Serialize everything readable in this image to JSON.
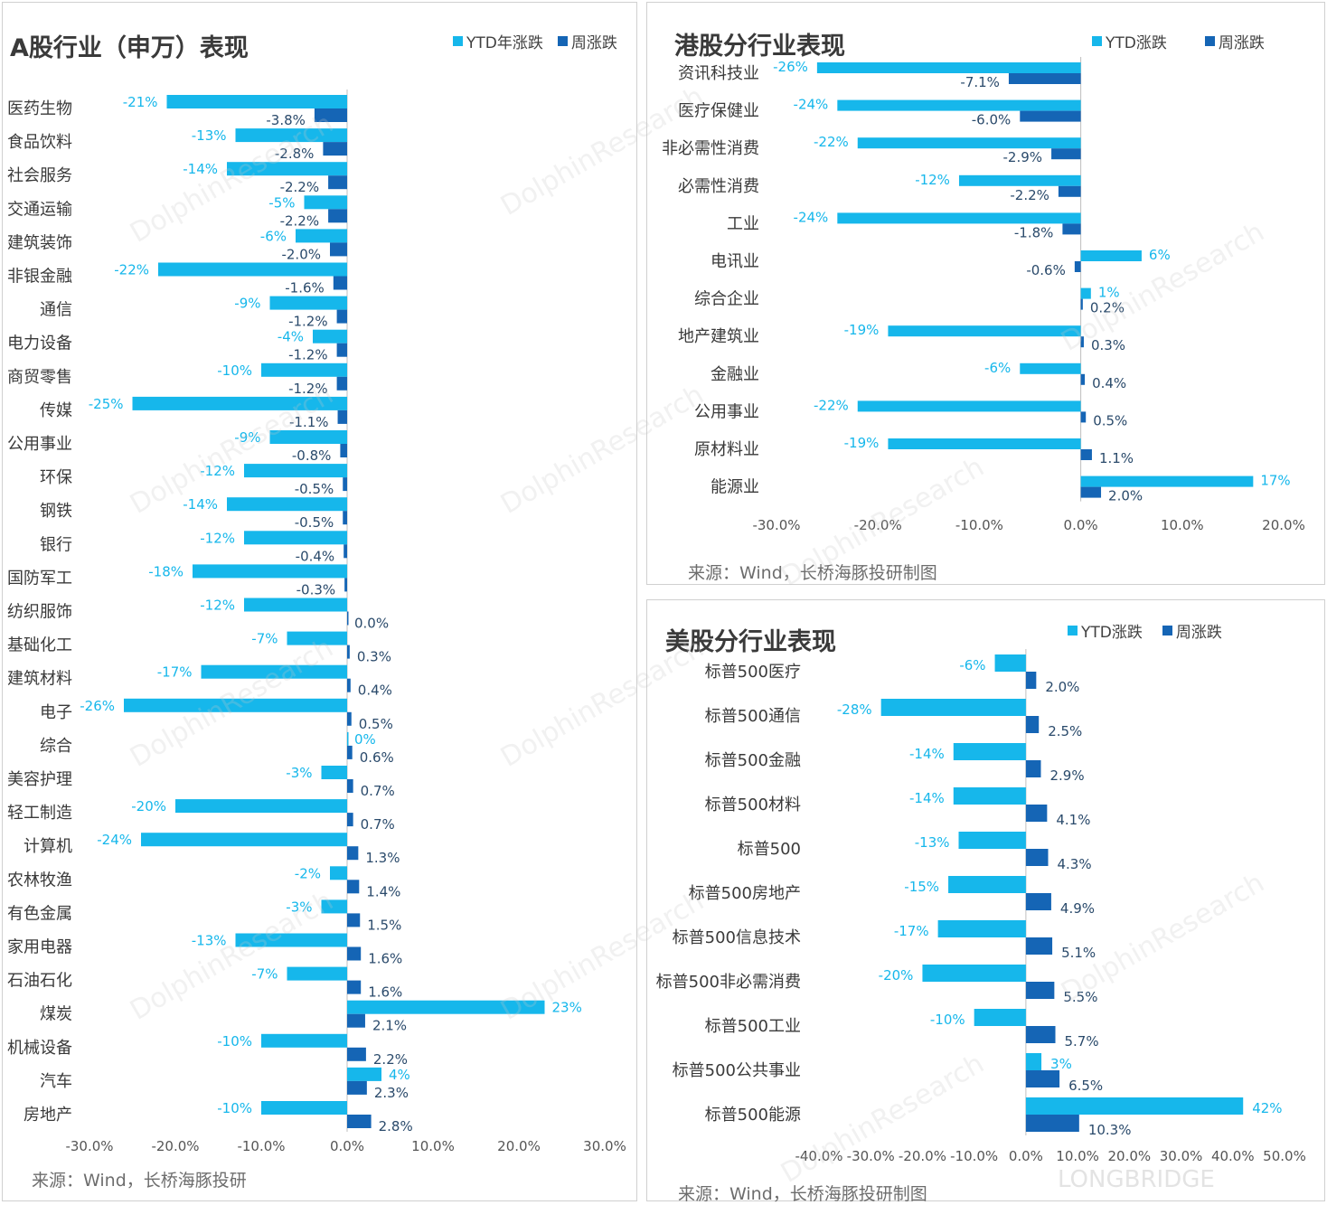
{
  "colors": {
    "ytd": "#16b7eb",
    "week": "#1565b5"
  },
  "watermark": {
    "text": "DolphinResearch",
    "sub": "LONGBRIDGE"
  },
  "panels": {
    "a": {
      "title": "A股行业（申万）表现",
      "legend": [
        "YTD年涨跌",
        "周涨跌"
      ],
      "source": "来源：Wind，长桥海豚投研"
    },
    "hk": {
      "title": "港股分行业表现",
      "legend": [
        "YTD涨跌",
        "周涨跌"
      ],
      "source": "来源：Wind，长桥海豚投研制图"
    },
    "us": {
      "title": "美股分行业表现",
      "legend": [
        "YTD涨跌",
        "周涨跌"
      ],
      "source": "来源：Wind，长桥海豚投研制图"
    }
  },
  "chart_data": [
    {
      "id": "a",
      "type": "bar",
      "orientation": "horizontal",
      "title": "A股行业（申万）表现",
      "categories": [
        "医药生物",
        "食品饮料",
        "社会服务",
        "交通运输",
        "建筑装饰",
        "非银金融",
        "通信",
        "电力设备",
        "商贸零售",
        "传媒",
        "公用事业",
        "环保",
        "钢铁",
        "银行",
        "国防军工",
        "纺织服饰",
        "基础化工",
        "建筑材料",
        "电子",
        "综合",
        "美容护理",
        "轻工制造",
        "计算机",
        "农林牧渔",
        "有色金属",
        "家用电器",
        "石油石化",
        "煤炭",
        "机械设备",
        "汽车",
        "房地产"
      ],
      "series": [
        {
          "name": "YTD年涨跌",
          "values": [
            -21,
            -13,
            -14,
            -5,
            -6,
            -22,
            -9,
            -4,
            -10,
            -25,
            -9,
            -12,
            -14,
            -12,
            -18,
            -12,
            -7,
            -17,
            -26,
            0,
            -3,
            -20,
            -24,
            -2,
            -3,
            -13,
            -7,
            23,
            -10,
            4,
            -10
          ],
          "labels": [
            "-21%",
            "-13%",
            "-14%",
            "-5%",
            "-6%",
            "-22%",
            "-9%",
            "-4%",
            "-10%",
            "-25%",
            "-9%",
            "-12%",
            "-14%",
            "-12%",
            "-18%",
            "-12%",
            "-7%",
            "-17%",
            "-26%",
            "0%",
            "-3%",
            "-20%",
            "-24%",
            "-2%",
            "-3%",
            "-13%",
            "-7%",
            "23%",
            "-10%",
            "4%",
            "-10%"
          ]
        },
        {
          "name": "周涨跌",
          "values": [
            -3.8,
            -2.8,
            -2.2,
            -2.2,
            -2.0,
            -1.6,
            -1.2,
            -1.2,
            -1.2,
            -1.1,
            -0.8,
            -0.5,
            -0.5,
            -0.4,
            -0.3,
            0.0,
            0.3,
            0.4,
            0.5,
            0.6,
            0.7,
            0.7,
            1.3,
            1.4,
            1.5,
            1.6,
            1.6,
            2.1,
            2.2,
            2.3,
            2.8
          ],
          "labels": [
            "-3.8%",
            "-2.8%",
            "-2.2%",
            "-2.2%",
            "-2.0%",
            "-1.6%",
            "-1.2%",
            "-1.2%",
            "-1.2%",
            "-1.1%",
            "-0.8%",
            "-0.5%",
            "-0.5%",
            "-0.4%",
            "-0.3%",
            "0.0%",
            "0.3%",
            "0.4%",
            "0.5%",
            "0.6%",
            "0.7%",
            "0.7%",
            "1.3%",
            "1.4%",
            "1.5%",
            "1.6%",
            "1.6%",
            "2.1%",
            "2.2%",
            "2.3%",
            "2.8%"
          ]
        }
      ],
      "xlim": [
        -30,
        30
      ],
      "xticks": [
        "-30.0%",
        "-20.0%",
        "-10.0%",
        "0.0%",
        "10.0%",
        "20.0%",
        "30.0%"
      ],
      "legend_position": "top-right"
    },
    {
      "id": "hk",
      "type": "bar",
      "orientation": "horizontal",
      "title": "港股分行业表现",
      "categories": [
        "资讯科技业",
        "医疗保健业",
        "非必需性消费",
        "必需性消费",
        "工业",
        "电讯业",
        "综合企业",
        "地产建筑业",
        "金融业",
        "公用事业",
        "原材料业",
        "能源业"
      ],
      "series": [
        {
          "name": "YTD涨跌",
          "values": [
            -26,
            -24,
            -22,
            -12,
            -24,
            6,
            1,
            -19,
            -6,
            -22,
            -19,
            17
          ],
          "labels": [
            "-26%",
            "-24%",
            "-22%",
            "-12%",
            "-24%",
            "6%",
            "1%",
            "-19%",
            "-6%",
            "-22%",
            "-19%",
            "17%"
          ]
        },
        {
          "name": "周涨跌",
          "values": [
            -7.1,
            -6.0,
            -2.9,
            -2.2,
            -1.8,
            -0.6,
            0.2,
            0.3,
            0.4,
            0.5,
            1.1,
            2.0
          ],
          "labels": [
            "-7.1%",
            "-6.0%",
            "-2.9%",
            "-2.2%",
            "-1.8%",
            "-0.6%",
            "0.2%",
            "0.3%",
            "0.4%",
            "0.5%",
            "1.1%",
            "2.0%"
          ]
        }
      ],
      "xlim": [
        -30,
        20
      ],
      "xticks": [
        "-30.0%",
        "-20.0%",
        "-10.0%",
        "0.0%",
        "10.0%",
        "20.0%"
      ],
      "legend_position": "top-right"
    },
    {
      "id": "us",
      "type": "bar",
      "orientation": "horizontal",
      "title": "美股分行业表现",
      "categories": [
        "标普500医疗",
        "标普500通信",
        "标普500金融",
        "标普500材料",
        "标普500",
        "标普500房地产",
        "标普500信息技术",
        "标普500非必需消费",
        "标普500工业",
        "标普500公共事业",
        "标普500能源"
      ],
      "series": [
        {
          "name": "YTD涨跌",
          "values": [
            -6,
            -28,
            -14,
            -14,
            -13,
            -15,
            -17,
            -20,
            -10,
            3,
            42
          ],
          "labels": [
            "-6%",
            "-28%",
            "-14%",
            "-14%",
            "-13%",
            "-15%",
            "-17%",
            "-20%",
            "-10%",
            "3%",
            "42%"
          ]
        },
        {
          "name": "周涨跌",
          "values": [
            2.0,
            2.5,
            2.9,
            4.1,
            4.3,
            4.9,
            5.1,
            5.5,
            5.7,
            6.5,
            10.3
          ],
          "labels": [
            "2.0%",
            "2.5%",
            "2.9%",
            "4.1%",
            "4.3%",
            "4.9%",
            "5.1%",
            "5.5%",
            "5.7%",
            "6.5%",
            "10.3%"
          ]
        }
      ],
      "xlim": [
        -40,
        50
      ],
      "xticks": [
        "-40.0%",
        "-30.0%",
        "-20.0%",
        "-10.0%",
        "0.0%",
        "10.0%",
        "20.0%",
        "30.0%",
        "40.0%",
        "50.0%"
      ],
      "legend_position": "top-right"
    }
  ]
}
